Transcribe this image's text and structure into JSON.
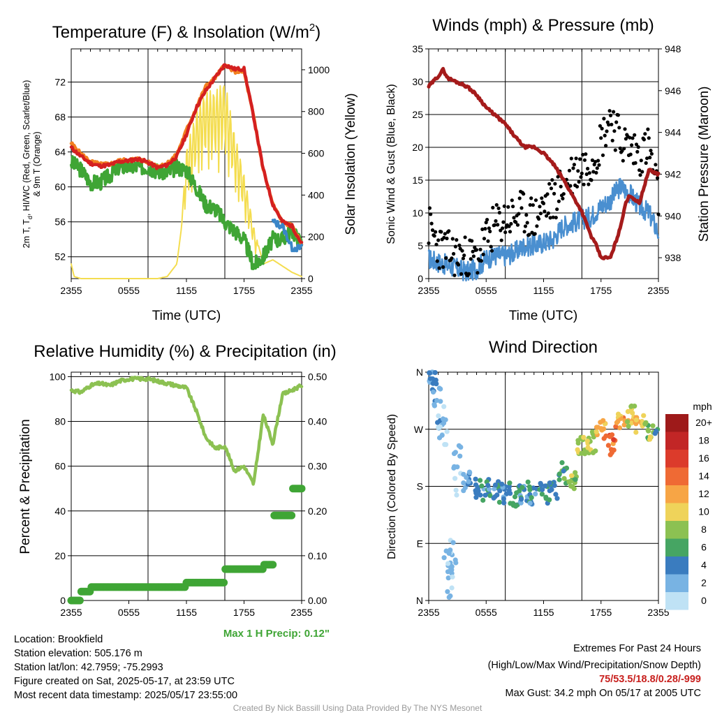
{
  "charts": {
    "temp": {
      "title_main": "Temperature (F) & Insolation (W/m",
      "title_sup": "2",
      "title_end": ")",
      "ylabel_line1": "2m T, T",
      "ylabel_sub": "d",
      "ylabel_line1b": ", HI/WC (Red, Green, Scarlet/Blue)",
      "ylabel_line2": "& 9m T (Orange)",
      "y2label": "Solar Insolation (Yellow)",
      "xlabel": "Time (UTC)"
    },
    "wind": {
      "title": "Winds (mph) & Pressure (mb)",
      "ylabel": "Sonic Wind & Gust (Blue, Black)",
      "y2label": "Station Pressure (Maroon)",
      "xlabel": "Time (UTC)"
    },
    "rh": {
      "title": "Relative Humidity (%) & Precipitation (in)",
      "ylabel": "Percent & Precipitation",
      "precip_note": "Max 1 H Precip: 0.12\""
    },
    "dir": {
      "title": "Wind Direction",
      "ylabel": "Direction (Colored By Speed)",
      "legend_title": "mph"
    }
  },
  "info": {
    "location": "Location: Brookfield",
    "elevation": "Station elevation: 505.176 m",
    "latlon": "Station lat/lon: 42.7959; -75.2993",
    "created": "Figure created on Sat, 2025-05-17, at 23:59 UTC",
    "recent": "Most recent data timestamp: 2025/05/17 23:55:00",
    "extremes_title": "Extremes For Past 24 Hours",
    "extremes_sub": "(High/Low/Max Wind/Precipitation/Snow Depth)",
    "extremes_values": "75/53.5/18.8/0.28/-999",
    "max_gust": "Max Gust: 34.2 mph On 05/17 at 2005 UTC",
    "credit": "Created By Nick Bassill Using Data Provided By The NYS Mesonet"
  },
  "chart_data": [
    {
      "type": "line",
      "title": "Temperature (F) & Insolation (W/m2)",
      "xlabel": "Time (UTC)",
      "ylabel": "2m T, Td, HI/WC (Red, Green, Scarlet/Blue) & 9m T (Orange)",
      "y2label": "Solar Insolation (Yellow)",
      "x_ticks": [
        "2355",
        "0555",
        "1155",
        "1755",
        "2355"
      ],
      "y_ticks": [
        52,
        56,
        60,
        64,
        68,
        72
      ],
      "y2_ticks": [
        0,
        200,
        400,
        600,
        800,
        1000
      ],
      "ylim": [
        49.5,
        75.8
      ],
      "y2lim": [
        0,
        1100
      ],
      "grid": true,
      "series": [
        {
          "name": "2m T",
          "color": "#d42020",
          "x": [
            0,
            1,
            2,
            3,
            4,
            5,
            6,
            7,
            8,
            9,
            10,
            11,
            12,
            13,
            14,
            15,
            16,
            17,
            18,
            19,
            20,
            21,
            22,
            23,
            24
          ],
          "values": [
            64.5,
            63.5,
            62.7,
            62.4,
            62.5,
            62.9,
            63.0,
            63.2,
            62.8,
            62.2,
            62.5,
            63.5,
            66,
            69,
            71,
            72.5,
            74,
            73.5,
            73.5,
            68,
            62,
            58,
            56,
            55.5,
            53.5
          ]
        },
        {
          "name": "9m T",
          "color": "#f28020",
          "x": [
            0,
            1,
            2,
            3,
            4,
            5,
            6,
            7,
            8,
            9,
            10,
            11,
            12,
            13,
            14,
            15,
            16,
            17,
            18,
            19,
            20,
            21,
            22,
            23,
            24
          ],
          "values": [
            65,
            63.8,
            62.9,
            62.6,
            62.6,
            63.0,
            63.1,
            63.2,
            62.8,
            62.4,
            62.7,
            63.7,
            66.5,
            69,
            71.5,
            72.5,
            74,
            73.2,
            73.2,
            68,
            62,
            58,
            56,
            55.5,
            53.5
          ]
        },
        {
          "name": "Td",
          "color": "#3fa535",
          "x": [
            0,
            1,
            2,
            3,
            4,
            5,
            6,
            7,
            8,
            9,
            10,
            11,
            12,
            13,
            14,
            15,
            16,
            17,
            18,
            19,
            20,
            21,
            22,
            23,
            24
          ],
          "values": [
            62.8,
            62,
            60.5,
            60.5,
            61.3,
            62.3,
            62.3,
            62.3,
            62.3,
            61.8,
            61.6,
            62.2,
            62,
            60,
            58,
            57.5,
            56,
            55,
            54,
            51,
            52,
            54,
            54,
            55,
            53.5
          ]
        },
        {
          "name": "WC",
          "color": "#3a86c8",
          "x": [
            21,
            22,
            23,
            24
          ],
          "values": [
            56,
            55.5,
            53,
            53
          ]
        },
        {
          "name": "Solar",
          "axis": "y2",
          "color": "#f4dd50",
          "x": [
            0,
            0.3,
            1,
            2,
            3,
            4,
            5,
            6,
            7,
            8,
            9,
            10,
            11,
            11.5,
            12,
            13,
            14,
            15,
            16,
            17,
            18,
            19,
            20,
            21,
            22,
            23,
            24
          ],
          "values": [
            70,
            10,
            0,
            0,
            0,
            0,
            0,
            0,
            0,
            0,
            0,
            10,
            70,
            250,
            620,
            800,
            900,
            900,
            950,
            700,
            500,
            250,
            70,
            90,
            60,
            30,
            10
          ]
        }
      ]
    },
    {
      "type": "line",
      "title": "Winds (mph) & Pressure (mb)",
      "xlabel": "Time (UTC)",
      "ylabel": "Sonic Wind & Gust (Blue, Black)",
      "y2label": "Station Pressure (Maroon)",
      "x_ticks": [
        "2355",
        "0555",
        "1155",
        "1755",
        "2355"
      ],
      "y_ticks": [
        0,
        5,
        10,
        15,
        20,
        25,
        30,
        35
      ],
      "y2_ticks": [
        938,
        940,
        942,
        944,
        946,
        948
      ],
      "ylim": [
        0,
        35
      ],
      "y2lim": [
        937,
        948
      ],
      "grid": true,
      "series": [
        {
          "name": "Sonic Wind",
          "color": "#4a8fd0",
          "x": [
            0,
            1,
            2,
            3,
            4,
            5,
            6,
            7,
            8,
            9,
            10,
            11,
            12,
            13,
            14,
            15,
            16,
            17,
            18,
            19,
            20,
            21,
            22,
            23,
            24
          ],
          "values": [
            3,
            2.5,
            2,
            1.5,
            1,
            1.5,
            3,
            3.5,
            3.5,
            4,
            5,
            5,
            5.5,
            6,
            8,
            8.5,
            9,
            9.5,
            11,
            12,
            14,
            13,
            11,
            10,
            7
          ]
        },
        {
          "name": "Gust",
          "type": "scatter",
          "color": "#000000",
          "x": [
            0,
            1,
            2,
            3,
            4,
            5,
            6,
            7,
            8,
            9,
            10,
            11,
            12,
            13,
            14,
            15,
            16,
            17,
            18,
            19,
            20,
            21,
            22,
            23,
            24
          ],
          "values": [
            8,
            5,
            4,
            3.5,
            3,
            3,
            6,
            8,
            9,
            9.5,
            10,
            9,
            11,
            12,
            14,
            16,
            17,
            18,
            21,
            25,
            21,
            20,
            19,
            20,
            12
          ]
        },
        {
          "name": "Station Pressure",
          "axis": "y2",
          "color": "#a51b1b",
          "x": [
            0,
            1,
            1.5,
            2,
            3,
            4,
            5,
            6,
            7,
            8,
            9,
            10,
            11,
            12,
            13,
            14,
            15,
            16,
            17,
            17.5,
            18,
            19,
            20,
            20.5,
            21,
            22,
            23,
            24
          ],
          "values": [
            946.2,
            946.7,
            947,
            946.6,
            946.4,
            946.2,
            945.8,
            945.2,
            944.8,
            944.4,
            943.8,
            943.3,
            943.3,
            943.0,
            942.5,
            941.8,
            941,
            940.2,
            939,
            938.6,
            938,
            938,
            939.4,
            940.5,
            941,
            940.6,
            942.2,
            942
          ]
        }
      ]
    },
    {
      "type": "line",
      "title": "Relative Humidity (%) & Precipitation (in)",
      "ylabel": "Percent & Precipitation",
      "x_ticks": [
        "2355",
        "0555",
        "1155",
        "1755",
        "2355"
      ],
      "y_ticks": [
        0,
        20,
        40,
        60,
        80,
        100
      ],
      "y2_ticks": [
        0.0,
        0.1,
        0.2,
        0.3,
        0.4,
        0.5
      ],
      "ylim": [
        0,
        102
      ],
      "y2lim": [
        0,
        0.51
      ],
      "grid": true,
      "series": [
        {
          "name": "Relative Humidity",
          "color": "#8cc152",
          "x": [
            0,
            1,
            2,
            3,
            4,
            5,
            6,
            7,
            8,
            9,
            10,
            11,
            12,
            13,
            14,
            15,
            16,
            17,
            18,
            19,
            20,
            21,
            22,
            23,
            24
          ],
          "values": [
            94,
            93,
            96,
            97,
            96,
            98,
            99,
            99,
            99,
            98,
            97,
            96,
            95,
            85,
            73,
            68,
            69,
            58,
            60,
            52,
            83,
            70,
            92,
            94,
            96
          ]
        },
        {
          "name": "Precipitation",
          "axis": "y2",
          "color": "#3fa535",
          "x": [
            0,
            1,
            2,
            3,
            4,
            5,
            6,
            7,
            8,
            9,
            10,
            11,
            12,
            13,
            14,
            15,
            16,
            17,
            18,
            19,
            20,
            21,
            22,
            23,
            24
          ],
          "values": [
            0.0,
            0.02,
            0.03,
            0.03,
            0.03,
            0.03,
            0.03,
            0.03,
            0.03,
            0.03,
            0.03,
            0.03,
            0.04,
            0.04,
            0.04,
            0.04,
            0.07,
            0.07,
            0.07,
            0.07,
            0.08,
            0.19,
            0.19,
            0.25,
            0.28
          ]
        }
      ]
    },
    {
      "type": "scatter",
      "title": "Wind Direction",
      "ylabel": "Direction (Colored By Speed)",
      "x_ticks": [
        "2355",
        "0555",
        "1155",
        "1755",
        "2355"
      ],
      "y_ticks": [
        "N",
        "E",
        "S",
        "W",
        "N"
      ],
      "ylim": [
        0,
        360
      ],
      "grid": true,
      "colorbar": {
        "title": "mph",
        "labels": [
          "20+",
          "18",
          "16",
          "14",
          "12",
          "10",
          "8",
          "6",
          "4",
          "2",
          "0"
        ],
        "colors": [
          "#9e1a1a",
          "#c22626",
          "#dc3b2b",
          "#ef6a34",
          "#f7a545",
          "#efd35a",
          "#8cc152",
          "#46a563",
          "#3a7cbf",
          "#78b3e3",
          "#bfe2f5"
        ]
      },
      "points": [
        {
          "x": 0,
          "dir": 355,
          "speed": 4
        },
        {
          "x": 0.5,
          "dir": 345,
          "speed": 3
        },
        {
          "x": 1,
          "dir": 300,
          "speed": 2
        },
        {
          "x": 1.5,
          "dir": 270,
          "speed": 1
        },
        {
          "x": 2,
          "dir": 40,
          "speed": 2
        },
        {
          "x": 2.5,
          "dir": 60,
          "speed": 1
        },
        {
          "x": 3,
          "dir": 200,
          "speed": 1
        },
        {
          "x": 4,
          "dir": 190,
          "speed": 3
        },
        {
          "x": 5,
          "dir": 180,
          "speed": 4
        },
        {
          "x": 6,
          "dir": 175,
          "speed": 4
        },
        {
          "x": 7,
          "dir": 170,
          "speed": 4
        },
        {
          "x": 8,
          "dir": 168,
          "speed": 4
        },
        {
          "x": 9,
          "dir": 165,
          "speed": 5
        },
        {
          "x": 10,
          "dir": 170,
          "speed": 4
        },
        {
          "x": 11,
          "dir": 165,
          "speed": 4
        },
        {
          "x": 12,
          "dir": 170,
          "speed": 5
        },
        {
          "x": 13,
          "dir": 175,
          "speed": 5
        },
        {
          "x": 14,
          "dir": 200,
          "speed": 6
        },
        {
          "x": 15,
          "dir": 190,
          "speed": 8
        },
        {
          "x": 16,
          "dir": 240,
          "speed": 8
        },
        {
          "x": 17,
          "dir": 250,
          "speed": 9
        },
        {
          "x": 18,
          "dir": 270,
          "speed": 12
        },
        {
          "x": 19,
          "dir": 245,
          "speed": 14
        },
        {
          "x": 20,
          "dir": 280,
          "speed": 12
        },
        {
          "x": 21,
          "dir": 290,
          "speed": 10
        },
        {
          "x": 22,
          "dir": 275,
          "speed": 11
        },
        {
          "x": 23,
          "dir": 270,
          "speed": 8
        },
        {
          "x": 24,
          "dir": 260,
          "speed": 4
        }
      ]
    }
  ]
}
